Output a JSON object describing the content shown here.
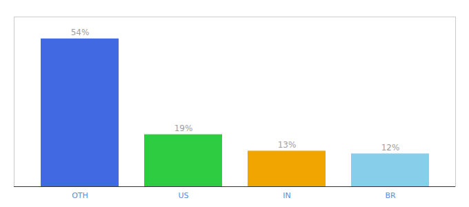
{
  "chart_data": {
    "type": "bar",
    "categories": [
      "OTH",
      "US",
      "IN",
      "BR"
    ],
    "values": [
      54,
      19,
      13,
      12
    ],
    "value_labels": [
      "54%",
      "19%",
      "13%",
      "12%"
    ],
    "data_labels": true,
    "colors": [
      "#4169e1",
      "#2ecc40",
      "#f0a500",
      "#87ceeb"
    ],
    "ylim": [
      0,
      62
    ],
    "tick_labels": "x",
    "grid": false
  }
}
